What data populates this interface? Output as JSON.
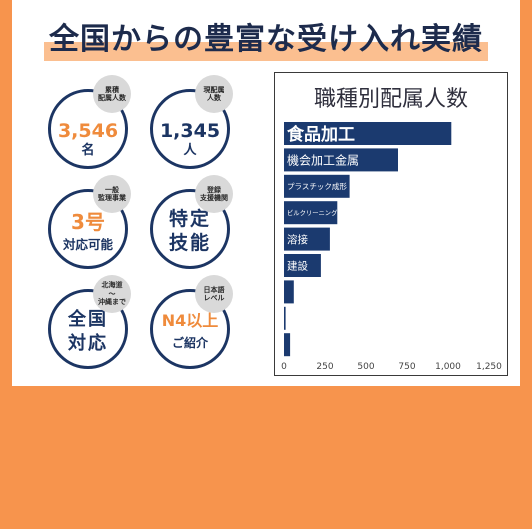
{
  "title": "全国からの豊富な受け入れ実績",
  "stats": [
    {
      "badge": [
        "累積",
        "配属人数"
      ],
      "lines": [
        "3,546",
        "名"
      ]
    },
    {
      "badge": [
        "現配属",
        "人数"
      ],
      "lines": [
        "1,345",
        "人"
      ]
    },
    {
      "badge": [
        "一般",
        "監理事業"
      ],
      "lines": [
        "3号",
        "対応可能"
      ]
    },
    {
      "badge": [
        "登録",
        "支援機関"
      ],
      "lines": [
        "特定",
        "技能"
      ]
    },
    {
      "badge": [
        "北海道",
        "〜",
        "沖縄まで"
      ],
      "lines": [
        "全国",
        "対応"
      ]
    },
    {
      "badge": [
        "日本語",
        "レベル"
      ],
      "lines": [
        "N4以上",
        "ご紹介"
      ]
    }
  ],
  "colors": {
    "frame": "#f7944d",
    "title_highlight": "#fbbf90",
    "navy": "#1c3563",
    "orange": "#ef8b3c",
    "badge": "#d9d9d9",
    "bar": "#1b3a6f"
  },
  "chart_data": {
    "type": "bar",
    "orientation": "horizontal",
    "title": "職種別配属人数",
    "categories": [
      "食品加工",
      "機会加工金属",
      "プラスチック成形",
      "ビルクリーニング",
      "溶接",
      "建設",
      "",
      "",
      ""
    ],
    "values": [
      1020,
      695,
      400,
      325,
      280,
      225,
      60,
      10,
      37
    ],
    "xlim": [
      0,
      1350
    ],
    "x_ticks": [
      0,
      250,
      500,
      750,
      1000,
      1250
    ],
    "x_tick_labels": [
      "0",
      "250",
      "500",
      "750",
      "1,000",
      "1,250"
    ],
    "xlabel": "",
    "ylabel": "",
    "grid": false,
    "legend": "none",
    "labels_inside_bars": true
  }
}
